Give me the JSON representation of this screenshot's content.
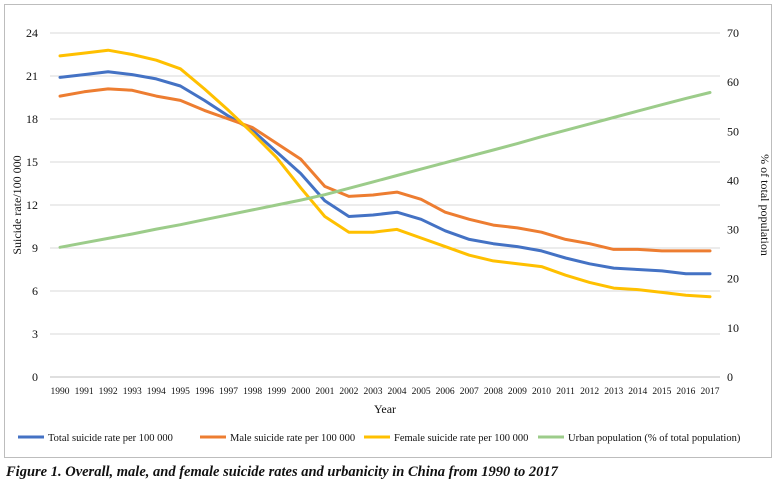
{
  "chart_data": {
    "type": "line",
    "title": "",
    "xlabel": "Year",
    "ylabel": "Suicide rate/100 000",
    "y2label": "% of total population",
    "ylim": [
      0,
      24
    ],
    "y2lim": [
      0,
      70
    ],
    "yticks": [
      "0",
      "3",
      "6",
      "9",
      "12",
      "15",
      "18",
      "21",
      "24"
    ],
    "y2ticks": [
      "0",
      "10",
      "20",
      "30",
      "40",
      "50",
      "60",
      "70"
    ],
    "grid": true,
    "legend_position": "bottom",
    "categories": [
      "1990",
      "1991",
      "1992",
      "1993",
      "1994",
      "1995",
      "1996",
      "1997",
      "1998",
      "1999",
      "2000",
      "2001",
      "2002",
      "2003",
      "2004",
      "2005",
      "2006",
      "2007",
      "2008",
      "2009",
      "2010",
      "2011",
      "2012",
      "2013",
      "2014",
      "2015",
      "2016",
      "2017"
    ],
    "series": [
      {
        "name": "Total suicide rate per 100 000",
        "axis": "left",
        "color": "#4472c4",
        "values": [
          20.9,
          21.1,
          21.3,
          21.1,
          20.8,
          20.3,
          19.3,
          18.2,
          17.2,
          15.7,
          14.2,
          12.3,
          11.2,
          11.3,
          11.5,
          11.0,
          10.2,
          9.6,
          9.3,
          9.1,
          8.8,
          8.3,
          7.9,
          7.6,
          7.5,
          7.4,
          7.2,
          7.2
        ]
      },
      {
        "name": "Male suicide rate per 100 000",
        "axis": "left",
        "color": "#ed7d31",
        "values": [
          19.6,
          19.9,
          20.1,
          20.0,
          19.6,
          19.3,
          18.6,
          18.0,
          17.4,
          16.3,
          15.2,
          13.3,
          12.6,
          12.7,
          12.9,
          12.4,
          11.5,
          11.0,
          10.6,
          10.4,
          10.1,
          9.6,
          9.3,
          8.9,
          8.9,
          8.8,
          8.8,
          8.8
        ]
      },
      {
        "name": "Female suicide rate per 100 000",
        "axis": "left",
        "color": "#ffc000",
        "values": [
          22.4,
          22.6,
          22.8,
          22.5,
          22.1,
          21.5,
          20.1,
          18.6,
          17.0,
          15.3,
          13.2,
          11.2,
          10.1,
          10.1,
          10.3,
          9.7,
          9.1,
          8.5,
          8.1,
          7.9,
          7.7,
          7.1,
          6.6,
          6.2,
          6.1,
          5.9,
          5.7,
          5.6
        ]
      },
      {
        "name": "Urban population (% of total population)",
        "axis": "right",
        "color": "#9ccc8a",
        "values": [
          26.4,
          27.3,
          28.2,
          29.1,
          30.1,
          31.0,
          32.0,
          33.0,
          34.0,
          35.0,
          36.0,
          37.1,
          38.4,
          39.7,
          41.0,
          42.3,
          43.6,
          44.9,
          46.2,
          47.5,
          48.9,
          50.2,
          51.5,
          52.8,
          54.1,
          55.4,
          56.7,
          57.9
        ]
      }
    ]
  },
  "caption": "Figure 1.  Overall, male, and female suicide rates and urbanicity in China from 1990 to 2017"
}
